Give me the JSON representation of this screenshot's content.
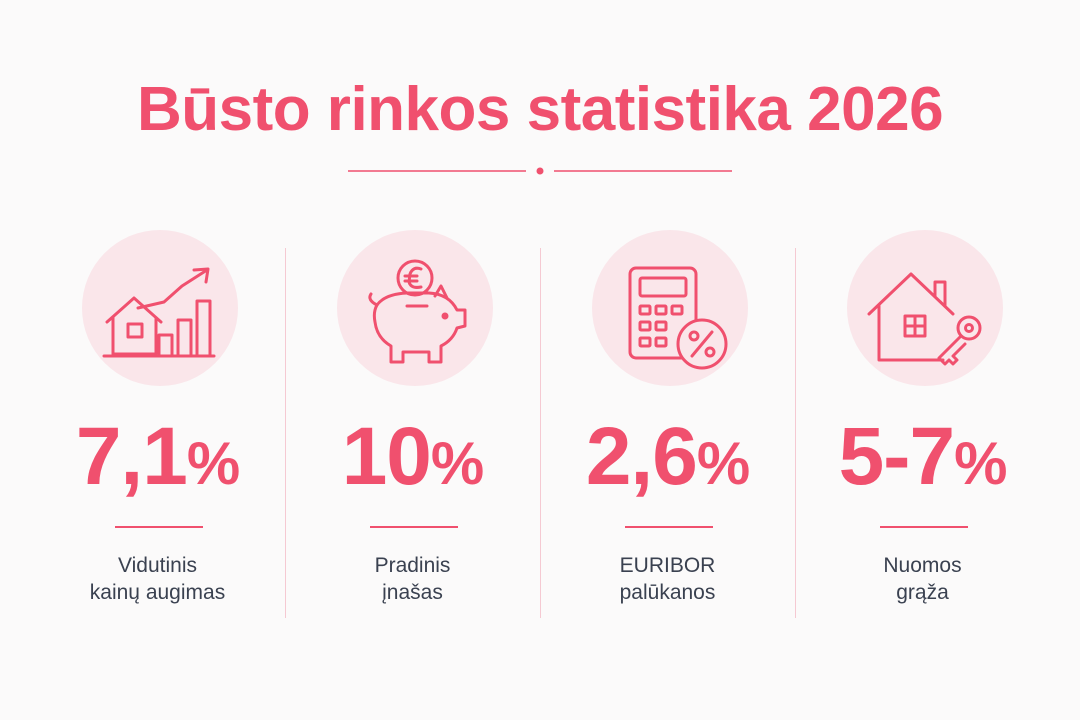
{
  "title": "Būsto rinkos statistika 2026",
  "accent_color": "#f0506e",
  "stats": [
    {
      "icon": "house-growth-chart-icon",
      "value": "7,1",
      "unit": "%",
      "label_line1": "Vidutinis",
      "label_line2": "kainų augimas"
    },
    {
      "icon": "piggy-bank-euro-icon",
      "value": "10",
      "unit": "%",
      "label_line1": "Pradinis",
      "label_line2": "įnašas"
    },
    {
      "icon": "calculator-percent-icon",
      "value": "2,6",
      "unit": "%",
      "label_line1": "EURIBOR",
      "label_line2": "palūkanos"
    },
    {
      "icon": "house-key-icon",
      "value": "5-7",
      "unit": "%",
      "label_line1": "Nuomos",
      "label_line2": "grąža"
    }
  ]
}
